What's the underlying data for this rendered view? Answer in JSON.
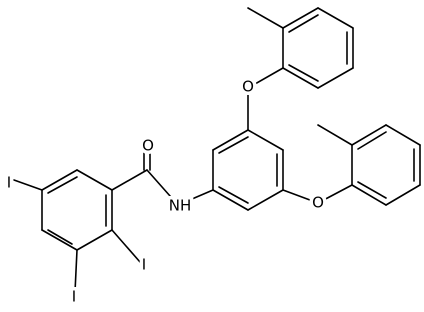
{
  "atoms": [
    {
      "label": "O"
    },
    {
      "label": "NH"
    },
    {
      "label": "O"
    },
    {
      "label": "O"
    },
    {
      "label": "I"
    },
    {
      "label": "I"
    },
    {
      "label": "I"
    }
  ]
}
